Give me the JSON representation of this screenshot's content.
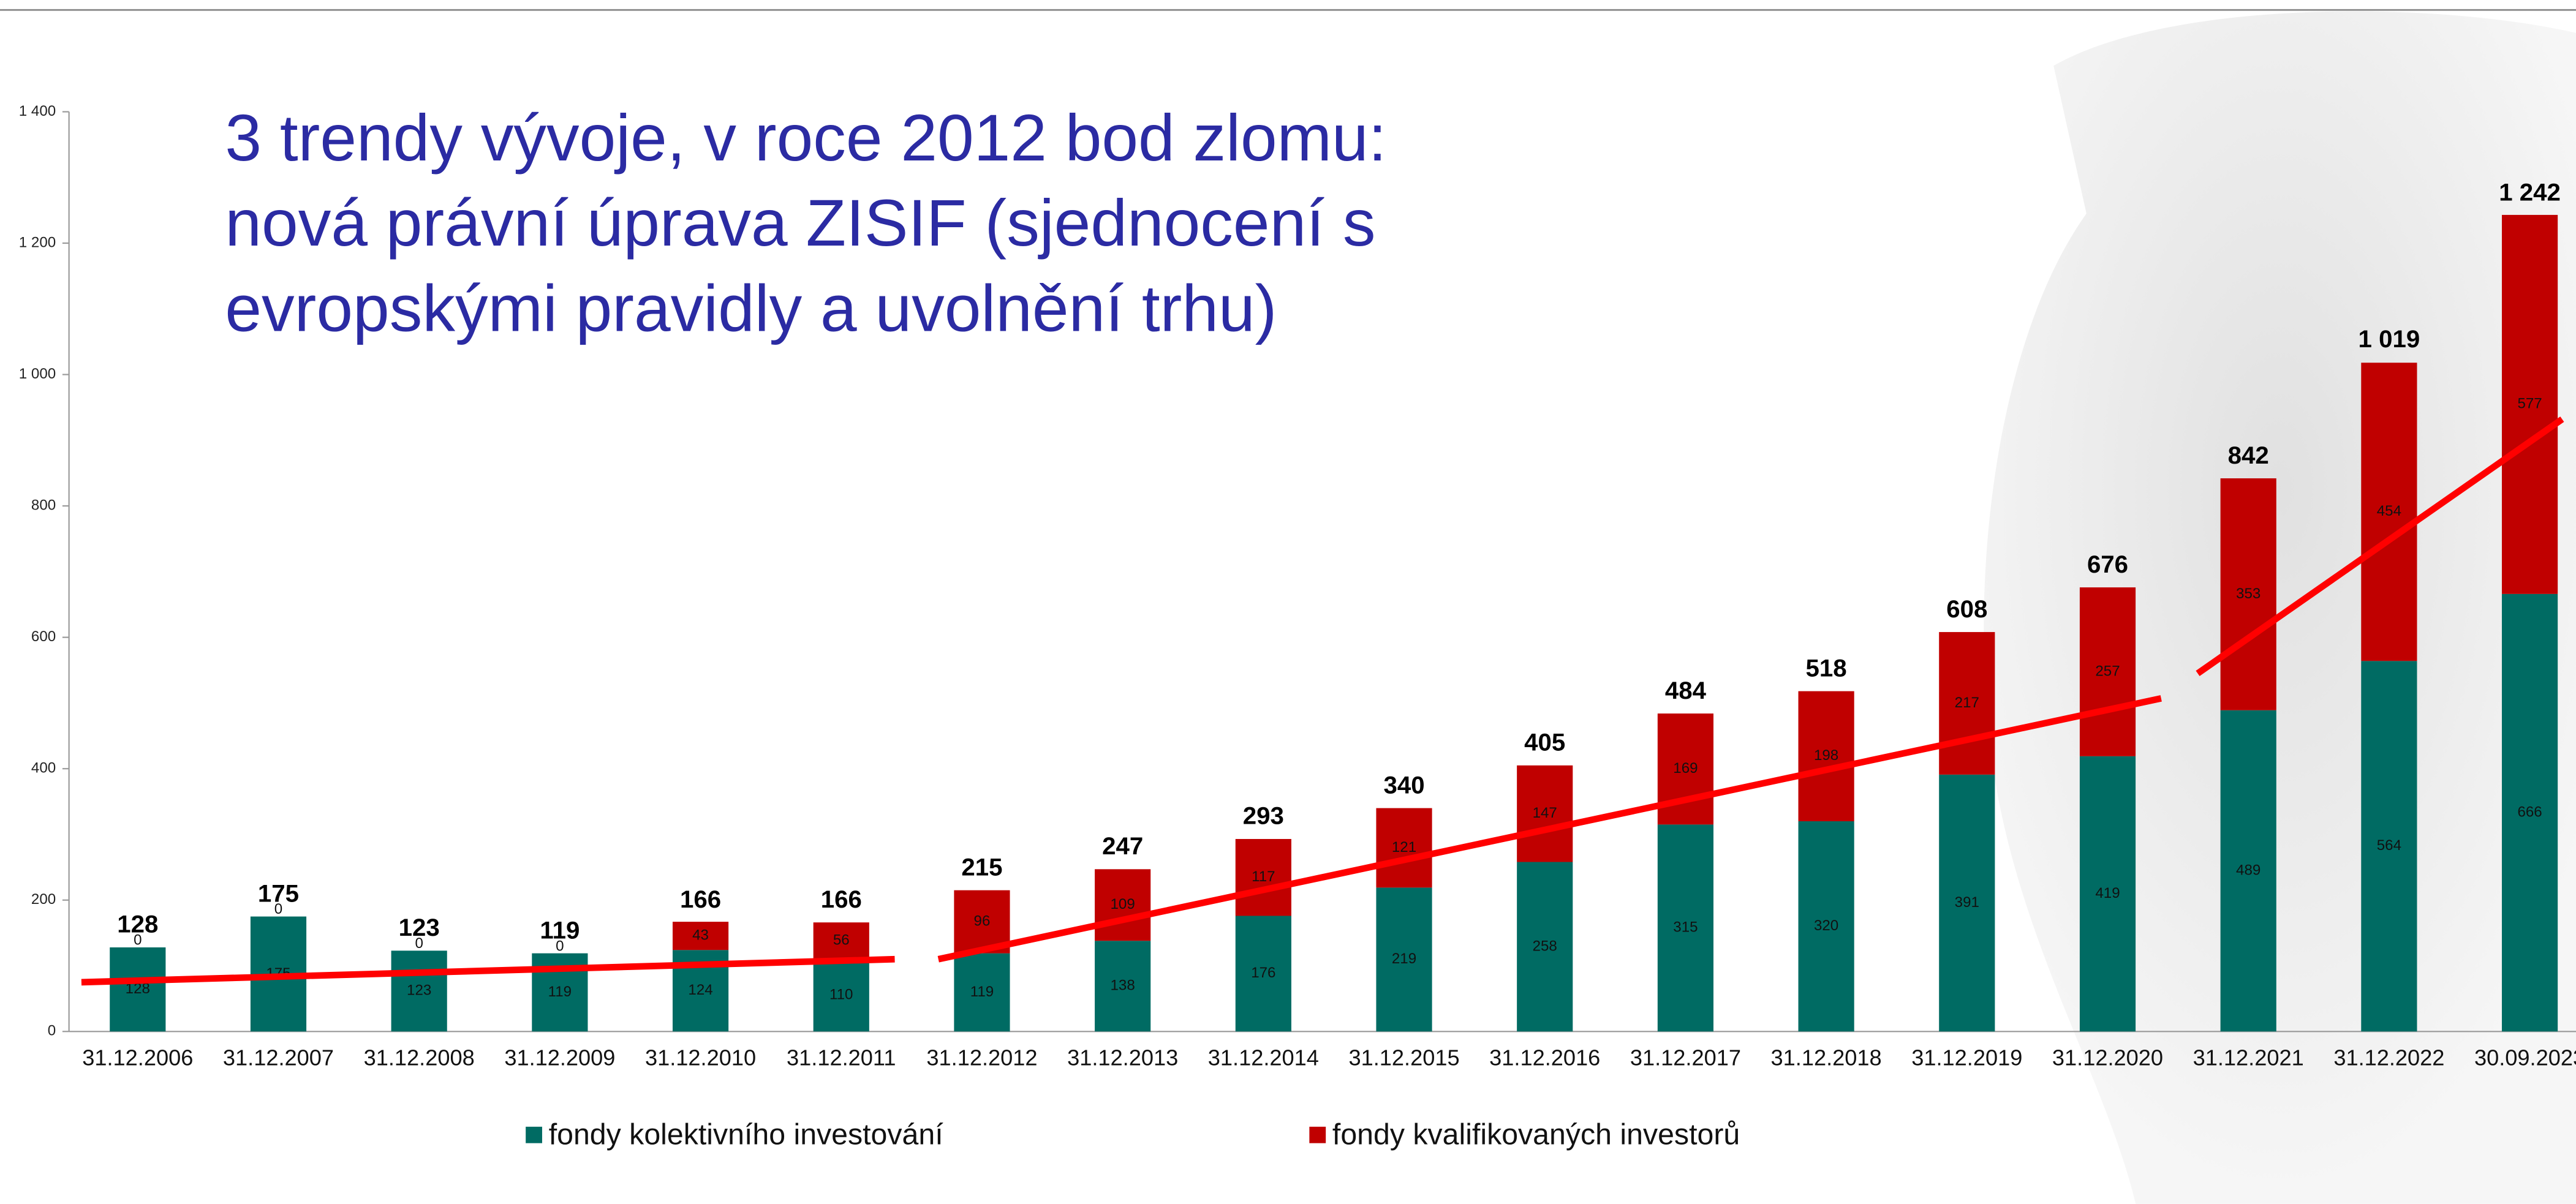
{
  "chart_data": {
    "type": "stacked-bar",
    "title": [
      "3 trendy vývoje, v roce 2012 bod zlomu:",
      "nová právní úprava ZISIF (sjednocení s",
      "evropskými pravidly a uvolnění trhu)"
    ],
    "categories": [
      "31.12.2006",
      "31.12.2007",
      "31.12.2008",
      "31.12.2009",
      "31.12.2010",
      "31.12.2011",
      "31.12.2012",
      "31.12.2013",
      "31.12.2014",
      "31.12.2015",
      "31.12.2016",
      "31.12.2017",
      "31.12.2018",
      "31.12.2019",
      "31.12.2020",
      "31.12.2021",
      "31.12.2022",
      "30.09.2023"
    ],
    "series": [
      {
        "name": "fondy kolektivního investování",
        "color": "#006b63",
        "values": [
          128,
          175,
          123,
          119,
          124,
          110,
          119,
          138,
          176,
          219,
          258,
          315,
          320,
          391,
          419,
          489,
          564,
          666
        ]
      },
      {
        "name": "fondy kvalifikovaných investorů",
        "color": "#c00000",
        "values": [
          0,
          0,
          0,
          0,
          43,
          56,
          96,
          109,
          117,
          121,
          147,
          169,
          198,
          217,
          257,
          353,
          454,
          577
        ]
      }
    ],
    "totals": {
      "values": [
        128,
        175,
        123,
        119,
        166,
        166,
        215,
        247,
        293,
        340,
        405,
        484,
        518,
        608,
        676,
        842,
        1019,
        1242
      ],
      "value_labels": [
        "128",
        "175",
        "123",
        "119",
        "166",
        "166",
        "215",
        "247",
        "293",
        "340",
        "405",
        "484",
        "518",
        "608",
        "676",
        "842",
        "1 019",
        "1 242"
      ]
    },
    "trend_lines": [
      {
        "color": "#ff0000",
        "x": [
          -0.4,
          5.38
        ],
        "y": [
          75,
          110
        ]
      },
      {
        "color": "#ff0000",
        "x": [
          5.69,
          14.38
        ],
        "y": [
          110,
          507
        ]
      },
      {
        "color": "#ff0000",
        "x": [
          14.64,
          17.23
        ],
        "y": [
          545,
          932
        ]
      }
    ],
    "ylim": [
      0,
      1400
    ],
    "yticks": [
      0,
      200,
      400,
      600,
      800,
      {
        "value": 1000,
        "label": "1 000"
      },
      {
        "value": 1200,
        "label": "1 200"
      },
      {
        "value": 1400,
        "label": "1 400"
      }
    ]
  }
}
